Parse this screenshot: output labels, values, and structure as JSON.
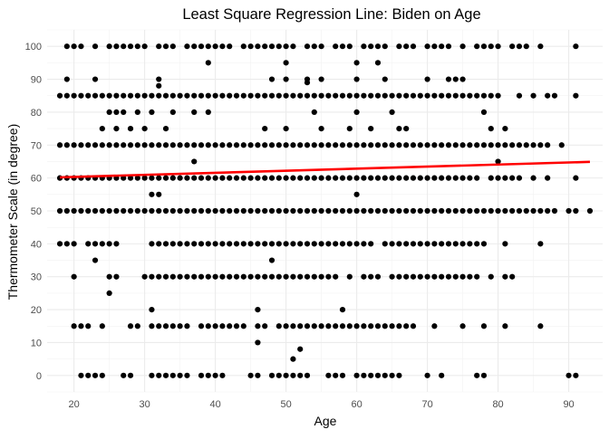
{
  "chart_data": {
    "type": "scatter",
    "title": "Least Square Regression Line: Biden on Age",
    "xlabel": "Age",
    "ylabel": "Thermometer Scale (in degree)",
    "xlim": [
      16.2,
      94.8
    ],
    "ylim": [
      -5,
      105
    ],
    "xticks": [
      20,
      30,
      40,
      50,
      60,
      70,
      80,
      90
    ],
    "yticks": [
      0,
      10,
      20,
      30,
      40,
      50,
      60,
      70,
      80,
      90,
      100
    ],
    "grid": true,
    "point_color": "#000000",
    "line_color": "#ff0000",
    "regression_line": {
      "x": [
        18,
        93
      ],
      "y": [
        60.2,
        64.9
      ]
    },
    "rows": [
      {
        "y": 100,
        "x": [
          19,
          20,
          21,
          23,
          25,
          26,
          27,
          28,
          29,
          30,
          32,
          33,
          34,
          36,
          37,
          38,
          39,
          40,
          41,
          42,
          44,
          45,
          46,
          47,
          48,
          49,
          50,
          51,
          53,
          54,
          55,
          57,
          58,
          59,
          61,
          62,
          63,
          64,
          66,
          67,
          68,
          70,
          71,
          72,
          73,
          75,
          77,
          78,
          79,
          80,
          82,
          83,
          84,
          86,
          91
        ]
      },
      {
        "y": 95,
        "x": [
          39,
          50,
          60,
          63
        ]
      },
      {
        "y": 90,
        "x": [
          19,
          23,
          32,
          48,
          50,
          53,
          55,
          60,
          64,
          70,
          73,
          74,
          75
        ]
      },
      {
        "y": 89,
        "x": [
          53
        ]
      },
      {
        "y": 88,
        "x": [
          32
        ]
      },
      {
        "y": 85,
        "x": [
          18,
          19,
          20,
          21,
          22,
          23,
          24,
          25,
          26,
          27,
          28,
          29,
          30,
          31,
          32,
          33,
          34,
          35,
          36,
          37,
          38,
          39,
          40,
          41,
          42,
          43,
          44,
          45,
          46,
          47,
          48,
          49,
          50,
          51,
          52,
          53,
          54,
          55,
          56,
          57,
          58,
          59,
          60,
          61,
          62,
          63,
          64,
          65,
          66,
          67,
          68,
          69,
          70,
          71,
          72,
          73,
          74,
          75,
          76,
          77,
          78,
          79,
          80,
          83,
          85,
          87,
          88,
          91
        ]
      },
      {
        "y": 80,
        "x": [
          25,
          26,
          27,
          29,
          31,
          34,
          37,
          39,
          54,
          60,
          65,
          78
        ]
      },
      {
        "y": 75,
        "x": [
          24,
          26,
          28,
          30,
          33,
          47,
          50,
          55,
          59,
          62,
          66,
          67,
          79,
          81
        ]
      },
      {
        "y": 70,
        "x": [
          18,
          19,
          20,
          21,
          22,
          23,
          24,
          25,
          26,
          27,
          28,
          29,
          30,
          31,
          32,
          33,
          34,
          35,
          36,
          37,
          38,
          39,
          40,
          41,
          42,
          43,
          44,
          45,
          46,
          47,
          48,
          49,
          50,
          51,
          52,
          53,
          54,
          55,
          56,
          57,
          58,
          59,
          60,
          61,
          62,
          63,
          64,
          65,
          66,
          67,
          68,
          69,
          70,
          71,
          72,
          73,
          74,
          75,
          76,
          77,
          78,
          79,
          80,
          81,
          82,
          83,
          84,
          85,
          86,
          87,
          89
        ]
      },
      {
        "y": 65,
        "x": [
          37,
          80
        ]
      },
      {
        "y": 60,
        "x": [
          18,
          19,
          20,
          21,
          22,
          23,
          24,
          25,
          26,
          27,
          28,
          29,
          30,
          31,
          32,
          33,
          34,
          35,
          36,
          37,
          38,
          39,
          40,
          41,
          42,
          43,
          44,
          45,
          46,
          47,
          48,
          49,
          50,
          51,
          52,
          53,
          54,
          55,
          56,
          57,
          58,
          59,
          60,
          61,
          62,
          63,
          64,
          65,
          66,
          67,
          68,
          69,
          70,
          71,
          72,
          73,
          74,
          75,
          76,
          77,
          79,
          80,
          81,
          82,
          83,
          85,
          87,
          91
        ]
      },
      {
        "y": 55,
        "x": [
          31,
          32,
          60
        ]
      },
      {
        "y": 50,
        "x": [
          18,
          19,
          20,
          21,
          22,
          23,
          24,
          25,
          26,
          27,
          28,
          29,
          30,
          31,
          32,
          33,
          34,
          35,
          36,
          37,
          38,
          39,
          40,
          41,
          42,
          43,
          44,
          45,
          46,
          47,
          48,
          49,
          50,
          51,
          52,
          53,
          54,
          55,
          56,
          57,
          58,
          59,
          60,
          61,
          62,
          63,
          64,
          65,
          66,
          67,
          68,
          69,
          70,
          71,
          72,
          73,
          74,
          75,
          76,
          77,
          78,
          79,
          80,
          81,
          82,
          83,
          84,
          85,
          86,
          87,
          88,
          90,
          91,
          93
        ]
      },
      {
        "y": 40,
        "x": [
          18,
          19,
          20,
          22,
          23,
          24,
          25,
          26,
          31,
          32,
          33,
          34,
          35,
          36,
          37,
          38,
          39,
          40,
          41,
          42,
          43,
          44,
          45,
          46,
          47,
          48,
          49,
          50,
          51,
          52,
          53,
          54,
          55,
          56,
          57,
          58,
          59,
          60,
          61,
          62,
          64,
          65,
          66,
          67,
          68,
          69,
          70,
          71,
          72,
          73,
          74,
          75,
          76,
          77,
          78,
          81,
          86
        ]
      },
      {
        "y": 35,
        "x": [
          23,
          48
        ]
      },
      {
        "y": 30,
        "x": [
          20,
          25,
          26,
          30,
          31,
          32,
          33,
          34,
          35,
          36,
          37,
          38,
          39,
          40,
          41,
          42,
          43,
          44,
          45,
          46,
          47,
          48,
          49,
          50,
          51,
          52,
          53,
          54,
          55,
          56,
          57,
          59,
          61,
          62,
          63,
          65,
          66,
          67,
          68,
          69,
          70,
          71,
          72,
          73,
          74,
          75,
          76,
          77,
          79,
          81,
          82
        ]
      },
      {
        "y": 25,
        "x": [
          25
        ]
      },
      {
        "y": 20,
        "x": [
          31,
          46,
          58
        ]
      },
      {
        "y": 15,
        "x": [
          20,
          21,
          22,
          24,
          28,
          29,
          31,
          32,
          33,
          34,
          35,
          36,
          38,
          39,
          40,
          41,
          42,
          43,
          44,
          46,
          47,
          49,
          50,
          51,
          52,
          53,
          54,
          55,
          56,
          57,
          58,
          59,
          60,
          61,
          62,
          63,
          64,
          65,
          66,
          67,
          68,
          71,
          75,
          78,
          81,
          86
        ]
      },
      {
        "y": 10,
        "x": [
          46
        ]
      },
      {
        "y": 8,
        "x": [
          52
        ]
      },
      {
        "y": 5,
        "x": [
          51
        ]
      },
      {
        "y": 0,
        "x": [
          21,
          22,
          23,
          24,
          27,
          28,
          31,
          32,
          33,
          34,
          35,
          36,
          38,
          39,
          40,
          41,
          45,
          46,
          48,
          49,
          50,
          51,
          52,
          53,
          56,
          57,
          58,
          60,
          61,
          62,
          63,
          64,
          65,
          66,
          70,
          72,
          77,
          78,
          90,
          91
        ]
      }
    ]
  }
}
